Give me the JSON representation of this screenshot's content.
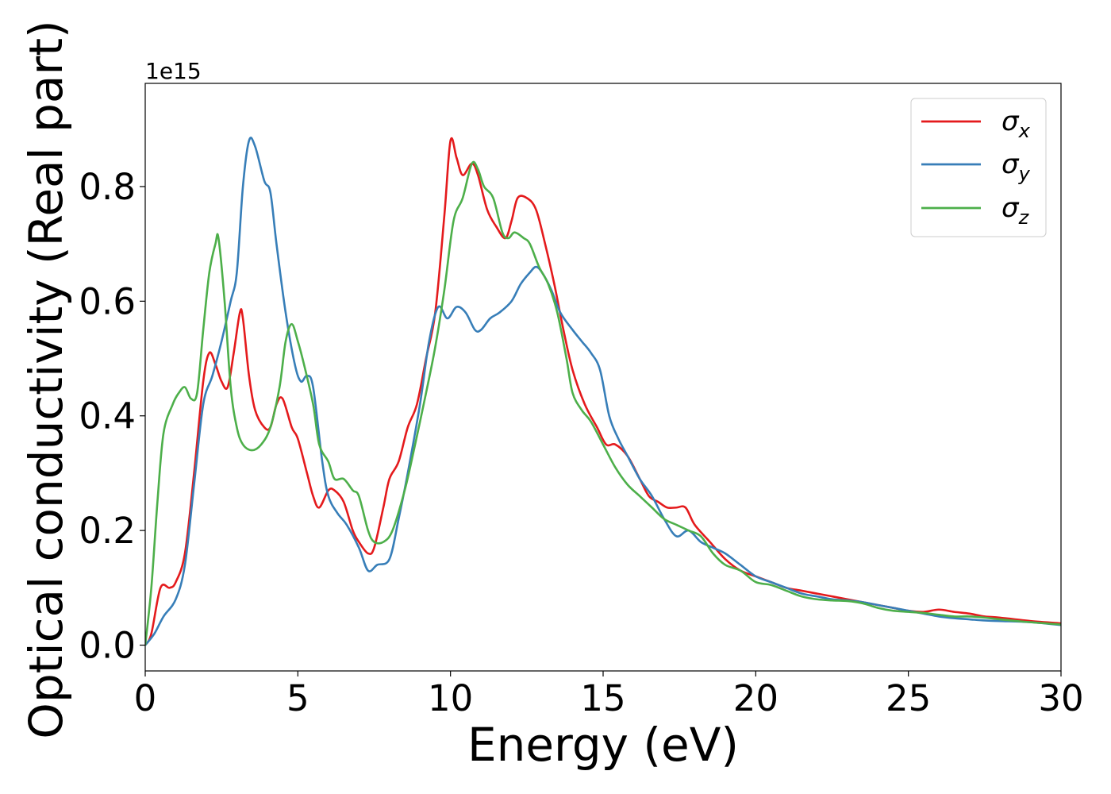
{
  "chart_data": {
    "type": "line",
    "xlabel": "Energy (eV)",
    "ylabel": "Optical conductivity (Real part)",
    "y_offset_text": "1e15",
    "xlim": [
      0,
      30
    ],
    "ylim": [
      -0.045,
      0.98
    ],
    "x_ticks": [
      0,
      5,
      10,
      15,
      20,
      25,
      30
    ],
    "x_tick_labels": [
      "0",
      "5",
      "10",
      "15",
      "20",
      "25",
      "30"
    ],
    "y_ticks": [
      0.0,
      0.2,
      0.4,
      0.6,
      0.8
    ],
    "y_tick_labels": [
      "0.0",
      "0.2",
      "0.4",
      "0.6",
      "0.8"
    ],
    "grid": false,
    "legend_position": "top-right",
    "series": [
      {
        "name": "σx",
        "legend_main": "σ",
        "legend_sub": "x",
        "color": "#e41a1c",
        "points": [
          [
            0,
            0
          ],
          [
            0.2,
            0.02
          ],
          [
            0.5,
            0.1
          ],
          [
            0.8,
            0.1
          ],
          [
            1.0,
            0.11
          ],
          [
            1.3,
            0.16
          ],
          [
            1.6,
            0.3
          ],
          [
            1.9,
            0.46
          ],
          [
            2.1,
            0.51
          ],
          [
            2.3,
            0.49
          ],
          [
            2.5,
            0.46
          ],
          [
            2.7,
            0.45
          ],
          [
            2.9,
            0.51
          ],
          [
            3.1,
            0.58
          ],
          [
            3.2,
            0.57
          ],
          [
            3.4,
            0.47
          ],
          [
            3.6,
            0.41
          ],
          [
            3.9,
            0.38
          ],
          [
            4.1,
            0.38
          ],
          [
            4.3,
            0.42
          ],
          [
            4.5,
            0.43
          ],
          [
            4.8,
            0.38
          ],
          [
            5.0,
            0.36
          ],
          [
            5.3,
            0.3
          ],
          [
            5.5,
            0.26
          ],
          [
            5.7,
            0.24
          ],
          [
            6.0,
            0.27
          ],
          [
            6.2,
            0.27
          ],
          [
            6.5,
            0.25
          ],
          [
            6.8,
            0.2
          ],
          [
            7.0,
            0.18
          ],
          [
            7.3,
            0.16
          ],
          [
            7.5,
            0.17
          ],
          [
            7.8,
            0.24
          ],
          [
            8.0,
            0.29
          ],
          [
            8.3,
            0.32
          ],
          [
            8.6,
            0.38
          ],
          [
            8.9,
            0.42
          ],
          [
            9.2,
            0.5
          ],
          [
            9.5,
            0.58
          ],
          [
            9.8,
            0.75
          ],
          [
            10.0,
            0.88
          ],
          [
            10.2,
            0.85
          ],
          [
            10.4,
            0.82
          ],
          [
            10.7,
            0.84
          ],
          [
            10.9,
            0.82
          ],
          [
            11.2,
            0.76
          ],
          [
            11.5,
            0.73
          ],
          [
            11.8,
            0.71
          ],
          [
            12.0,
            0.74
          ],
          [
            12.2,
            0.78
          ],
          [
            12.5,
            0.78
          ],
          [
            12.8,
            0.76
          ],
          [
            13.1,
            0.7
          ],
          [
            13.4,
            0.63
          ],
          [
            13.7,
            0.55
          ],
          [
            14.0,
            0.48
          ],
          [
            14.4,
            0.42
          ],
          [
            14.8,
            0.38
          ],
          [
            15.1,
            0.35
          ],
          [
            15.4,
            0.35
          ],
          [
            15.8,
            0.33
          ],
          [
            16.2,
            0.29
          ],
          [
            16.5,
            0.26
          ],
          [
            16.8,
            0.25
          ],
          [
            17.1,
            0.24
          ],
          [
            17.4,
            0.24
          ],
          [
            17.7,
            0.24
          ],
          [
            18.0,
            0.21
          ],
          [
            18.5,
            0.18
          ],
          [
            19.0,
            0.15
          ],
          [
            19.5,
            0.13
          ],
          [
            20.0,
            0.12
          ],
          [
            20.5,
            0.11
          ],
          [
            21.0,
            0.1
          ],
          [
            21.5,
            0.095
          ],
          [
            22.0,
            0.09
          ],
          [
            22.5,
            0.085
          ],
          [
            23.0,
            0.08
          ],
          [
            23.5,
            0.075
          ],
          [
            24.0,
            0.07
          ],
          [
            24.5,
            0.065
          ],
          [
            25.0,
            0.06
          ],
          [
            25.5,
            0.058
          ],
          [
            26.0,
            0.062
          ],
          [
            26.5,
            0.058
          ],
          [
            27.0,
            0.055
          ],
          [
            27.5,
            0.05
          ],
          [
            28.0,
            0.048
          ],
          [
            29.0,
            0.042
          ],
          [
            30.0,
            0.038
          ]
        ]
      },
      {
        "name": "σy",
        "legend_main": "σ",
        "legend_sub": "y",
        "color": "#377eb8",
        "points": [
          [
            0,
            0
          ],
          [
            0.3,
            0.02
          ],
          [
            0.6,
            0.05
          ],
          [
            1.0,
            0.08
          ],
          [
            1.3,
            0.14
          ],
          [
            1.6,
            0.28
          ],
          [
            1.9,
            0.42
          ],
          [
            2.2,
            0.47
          ],
          [
            2.5,
            0.53
          ],
          [
            2.8,
            0.6
          ],
          [
            3.0,
            0.65
          ],
          [
            3.2,
            0.8
          ],
          [
            3.4,
            0.88
          ],
          [
            3.6,
            0.87
          ],
          [
            3.9,
            0.81
          ],
          [
            4.1,
            0.79
          ],
          [
            4.3,
            0.7
          ],
          [
            4.6,
            0.58
          ],
          [
            4.9,
            0.49
          ],
          [
            5.1,
            0.46
          ],
          [
            5.3,
            0.47
          ],
          [
            5.5,
            0.45
          ],
          [
            5.8,
            0.32
          ],
          [
            6.0,
            0.26
          ],
          [
            6.3,
            0.23
          ],
          [
            6.6,
            0.21
          ],
          [
            7.0,
            0.17
          ],
          [
            7.3,
            0.13
          ],
          [
            7.6,
            0.14
          ],
          [
            8.0,
            0.15
          ],
          [
            8.3,
            0.22
          ],
          [
            8.6,
            0.3
          ],
          [
            9.0,
            0.42
          ],
          [
            9.3,
            0.53
          ],
          [
            9.6,
            0.59
          ],
          [
            9.9,
            0.57
          ],
          [
            10.2,
            0.59
          ],
          [
            10.5,
            0.58
          ],
          [
            10.8,
            0.55
          ],
          [
            11.0,
            0.55
          ],
          [
            11.3,
            0.57
          ],
          [
            11.6,
            0.58
          ],
          [
            12.0,
            0.6
          ],
          [
            12.3,
            0.63
          ],
          [
            12.6,
            0.65
          ],
          [
            12.8,
            0.66
          ],
          [
            13.0,
            0.65
          ],
          [
            13.3,
            0.62
          ],
          [
            13.6,
            0.58
          ],
          [
            14.0,
            0.55
          ],
          [
            14.3,
            0.53
          ],
          [
            14.6,
            0.51
          ],
          [
            14.9,
            0.48
          ],
          [
            15.2,
            0.4
          ],
          [
            15.5,
            0.36
          ],
          [
            15.8,
            0.33
          ],
          [
            16.2,
            0.29
          ],
          [
            16.6,
            0.26
          ],
          [
            17.0,
            0.22
          ],
          [
            17.4,
            0.19
          ],
          [
            17.8,
            0.2
          ],
          [
            18.2,
            0.18
          ],
          [
            18.6,
            0.17
          ],
          [
            19.0,
            0.16
          ],
          [
            19.5,
            0.14
          ],
          [
            20.0,
            0.12
          ],
          [
            20.5,
            0.11
          ],
          [
            21.0,
            0.1
          ],
          [
            21.5,
            0.09
          ],
          [
            22.0,
            0.085
          ],
          [
            22.5,
            0.08
          ],
          [
            23.0,
            0.078
          ],
          [
            23.5,
            0.075
          ],
          [
            24.0,
            0.07
          ],
          [
            24.5,
            0.065
          ],
          [
            25.0,
            0.06
          ],
          [
            25.5,
            0.055
          ],
          [
            26.0,
            0.05
          ],
          [
            26.5,
            0.047
          ],
          [
            27.0,
            0.045
          ],
          [
            27.5,
            0.043
          ],
          [
            28.0,
            0.042
          ],
          [
            29.0,
            0.04
          ],
          [
            30.0,
            0.035
          ]
        ]
      },
      {
        "name": "σz",
        "legend_main": "σ",
        "legend_sub": "z",
        "color": "#4daf4a",
        "points": [
          [
            0,
            0
          ],
          [
            0.2,
            0.1
          ],
          [
            0.4,
            0.25
          ],
          [
            0.6,
            0.37
          ],
          [
            0.9,
            0.42
          ],
          [
            1.1,
            0.44
          ],
          [
            1.3,
            0.45
          ],
          [
            1.5,
            0.43
          ],
          [
            1.7,
            0.44
          ],
          [
            1.9,
            0.55
          ],
          [
            2.1,
            0.65
          ],
          [
            2.3,
            0.7
          ],
          [
            2.4,
            0.71
          ],
          [
            2.6,
            0.6
          ],
          [
            2.8,
            0.45
          ],
          [
            3.0,
            0.38
          ],
          [
            3.2,
            0.35
          ],
          [
            3.5,
            0.34
          ],
          [
            3.8,
            0.35
          ],
          [
            4.1,
            0.38
          ],
          [
            4.4,
            0.45
          ],
          [
            4.6,
            0.53
          ],
          [
            4.8,
            0.56
          ],
          [
            5.0,
            0.53
          ],
          [
            5.2,
            0.49
          ],
          [
            5.5,
            0.42
          ],
          [
            5.7,
            0.35
          ],
          [
            6.0,
            0.32
          ],
          [
            6.2,
            0.29
          ],
          [
            6.5,
            0.29
          ],
          [
            6.8,
            0.27
          ],
          [
            7.0,
            0.26
          ],
          [
            7.3,
            0.2
          ],
          [
            7.5,
            0.18
          ],
          [
            7.8,
            0.18
          ],
          [
            8.1,
            0.2
          ],
          [
            8.5,
            0.27
          ],
          [
            8.8,
            0.34
          ],
          [
            9.2,
            0.44
          ],
          [
            9.5,
            0.52
          ],
          [
            9.8,
            0.62
          ],
          [
            10.1,
            0.74
          ],
          [
            10.4,
            0.78
          ],
          [
            10.7,
            0.84
          ],
          [
            10.9,
            0.83
          ],
          [
            11.1,
            0.8
          ],
          [
            11.4,
            0.78
          ],
          [
            11.7,
            0.72
          ],
          [
            11.9,
            0.71
          ],
          [
            12.1,
            0.72
          ],
          [
            12.4,
            0.71
          ],
          [
            12.6,
            0.7
          ],
          [
            12.9,
            0.66
          ],
          [
            13.2,
            0.63
          ],
          [
            13.5,
            0.58
          ],
          [
            13.8,
            0.5
          ],
          [
            14.0,
            0.44
          ],
          [
            14.3,
            0.41
          ],
          [
            14.6,
            0.39
          ],
          [
            15.0,
            0.35
          ],
          [
            15.4,
            0.31
          ],
          [
            15.8,
            0.28
          ],
          [
            16.2,
            0.26
          ],
          [
            16.6,
            0.24
          ],
          [
            17.0,
            0.22
          ],
          [
            17.4,
            0.21
          ],
          [
            17.8,
            0.2
          ],
          [
            18.2,
            0.19
          ],
          [
            18.6,
            0.16
          ],
          [
            19.0,
            0.14
          ],
          [
            19.5,
            0.13
          ],
          [
            20.0,
            0.11
          ],
          [
            20.5,
            0.105
          ],
          [
            21.0,
            0.095
          ],
          [
            21.5,
            0.085
          ],
          [
            22.0,
            0.08
          ],
          [
            22.5,
            0.078
          ],
          [
            23.0,
            0.077
          ],
          [
            23.5,
            0.073
          ],
          [
            24.0,
            0.065
          ],
          [
            24.5,
            0.06
          ],
          [
            25.0,
            0.058
          ],
          [
            25.5,
            0.056
          ],
          [
            26.0,
            0.053
          ],
          [
            26.5,
            0.05
          ],
          [
            27.0,
            0.05
          ],
          [
            27.5,
            0.048
          ],
          [
            28.0,
            0.045
          ],
          [
            29.0,
            0.04
          ],
          [
            30.0,
            0.036
          ]
        ]
      }
    ]
  }
}
